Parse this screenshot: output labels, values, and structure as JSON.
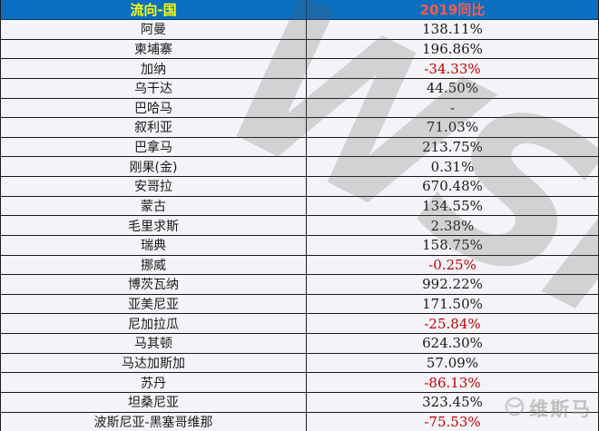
{
  "table": {
    "header": {
      "col1": "流向-国",
      "col2": "2019同比"
    },
    "rows": [
      {
        "country": "阿曼",
        "yoy": "138.11%",
        "neg": false
      },
      {
        "country": "柬埔寨",
        "yoy": "196.86%",
        "neg": false
      },
      {
        "country": "加纳",
        "yoy": "-34.33%",
        "neg": true
      },
      {
        "country": "乌干达",
        "yoy": "44.50%",
        "neg": false
      },
      {
        "country": "巴哈马",
        "yoy": "-",
        "neg": false
      },
      {
        "country": "叙利亚",
        "yoy": "71.03%",
        "neg": false
      },
      {
        "country": "巴拿马",
        "yoy": "213.75%",
        "neg": false
      },
      {
        "country": "刚果(金)",
        "yoy": "0.31%",
        "neg": false
      },
      {
        "country": "安哥拉",
        "yoy": "670.48%",
        "neg": false
      },
      {
        "country": "蒙古",
        "yoy": "134.55%",
        "neg": false
      },
      {
        "country": "毛里求斯",
        "yoy": "2.38%",
        "neg": false
      },
      {
        "country": "瑞典",
        "yoy": "158.75%",
        "neg": false
      },
      {
        "country": "挪威",
        "yoy": "-0.25%",
        "neg": true
      },
      {
        "country": "博茨瓦纳",
        "yoy": "992.22%",
        "neg": false
      },
      {
        "country": "亚美尼亚",
        "yoy": "171.50%",
        "neg": false
      },
      {
        "country": "尼加拉瓜",
        "yoy": "-25.84%",
        "neg": true
      },
      {
        "country": "马其顿",
        "yoy": "624.30%",
        "neg": false
      },
      {
        "country": "马达加斯加",
        "yoy": "57.09%",
        "neg": false
      },
      {
        "country": "苏丹",
        "yoy": "-86.13%",
        "neg": true
      },
      {
        "country": "坦桑尼亚",
        "yoy": "323.45%",
        "neg": false
      },
      {
        "country": "波斯尼亚-黑塞哥维那",
        "yoy": "-75.53%",
        "neg": true
      }
    ]
  },
  "watermark": {
    "big_text": "WSM",
    "logo_text": "维斯马"
  },
  "colors": {
    "header_bg": "#0a6fc1",
    "header_col1_text": "#ffff00",
    "header_col2_text": "#ff5b4a",
    "negative_value": "#c00000",
    "row_bg": "#f4f3f7",
    "border": "#1a1a1a"
  },
  "chart_data": {
    "type": "table",
    "title": "",
    "columns": [
      "流向-国",
      "2019同比"
    ],
    "rows": [
      [
        "阿曼",
        "138.11%"
      ],
      [
        "柬埔寨",
        "196.86%"
      ],
      [
        "加纳",
        "-34.33%"
      ],
      [
        "乌干达",
        "44.50%"
      ],
      [
        "巴哈马",
        "-"
      ],
      [
        "叙利亚",
        "71.03%"
      ],
      [
        "巴拿马",
        "213.75%"
      ],
      [
        "刚果(金)",
        "0.31%"
      ],
      [
        "安哥拉",
        "670.48%"
      ],
      [
        "蒙古",
        "134.55%"
      ],
      [
        "毛里求斯",
        "2.38%"
      ],
      [
        "瑞典",
        "158.75%"
      ],
      [
        "挪威",
        "-0.25%"
      ],
      [
        "博茨瓦纳",
        "992.22%"
      ],
      [
        "亚美尼亚",
        "171.50%"
      ],
      [
        "尼加拉瓜",
        "-25.84%"
      ],
      [
        "马其顿",
        "624.30%"
      ],
      [
        "马达加斯加",
        "57.09%"
      ],
      [
        "苏丹",
        "-86.13%"
      ],
      [
        "坦桑尼亚",
        "323.45%"
      ],
      [
        "波斯尼亚-黑塞哥维那",
        "-75.53%"
      ]
    ],
    "yoy_percent_values": [
      138.11,
      196.86,
      -34.33,
      44.5,
      null,
      71.03,
      213.75,
      0.31,
      670.48,
      134.55,
      2.38,
      158.75,
      -0.25,
      992.22,
      171.5,
      -25.84,
      624.3,
      57.09,
      -86.13,
      323.45,
      -75.53
    ],
    "layout": {
      "header_bg": "#0a6fc1",
      "negatives_in_red": true,
      "grid": true
    }
  }
}
